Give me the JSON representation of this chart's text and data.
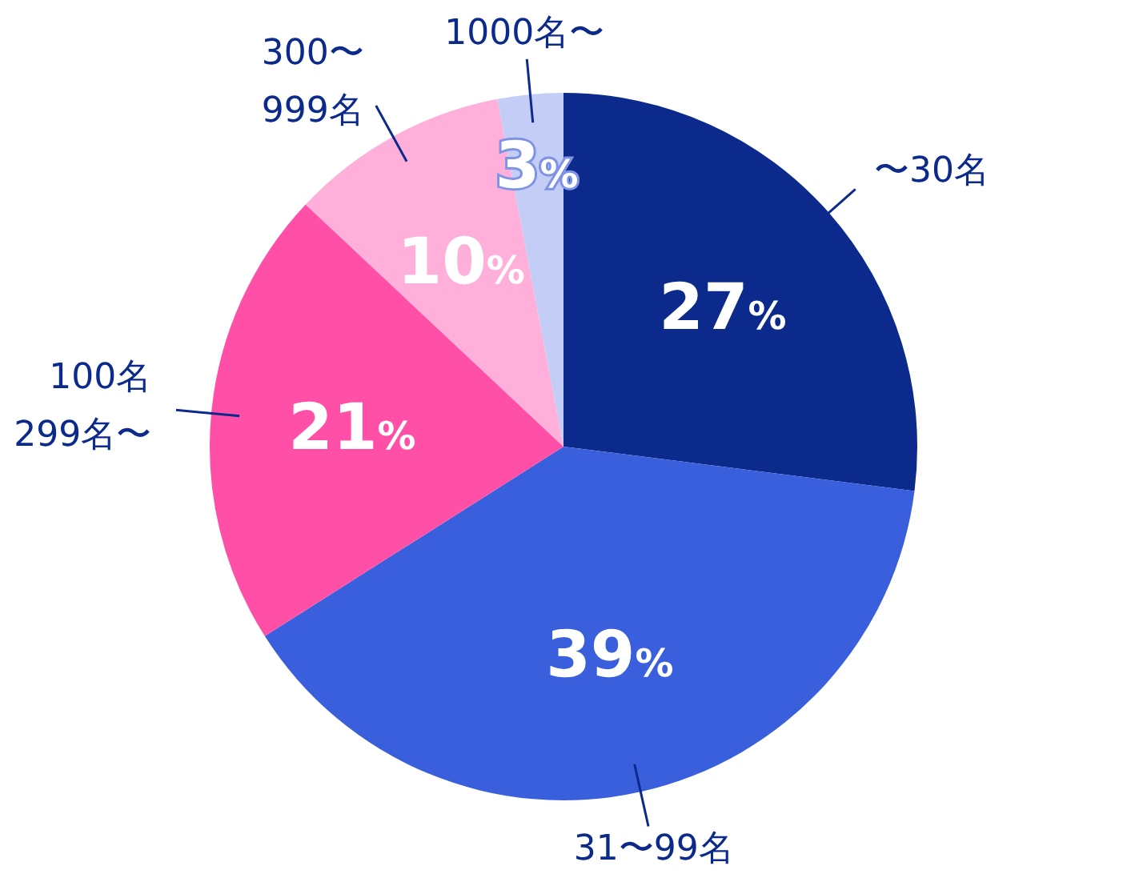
{
  "chart_data": {
    "type": "pie",
    "categories": [
      "〜30名",
      "31〜99名",
      "100名\n299名〜",
      "300〜\n999名",
      "1000名〜"
    ],
    "values": [
      27,
      39,
      21,
      10,
      3
    ],
    "colors": [
      "#0b2a8c",
      "#3a5fdc",
      "#ff4fa6",
      "#ffb0da",
      "#c4cdf5"
    ],
    "value_labels": [
      "27%",
      "39%",
      "21%",
      "10%",
      "3%"
    ],
    "legend": false
  }
}
